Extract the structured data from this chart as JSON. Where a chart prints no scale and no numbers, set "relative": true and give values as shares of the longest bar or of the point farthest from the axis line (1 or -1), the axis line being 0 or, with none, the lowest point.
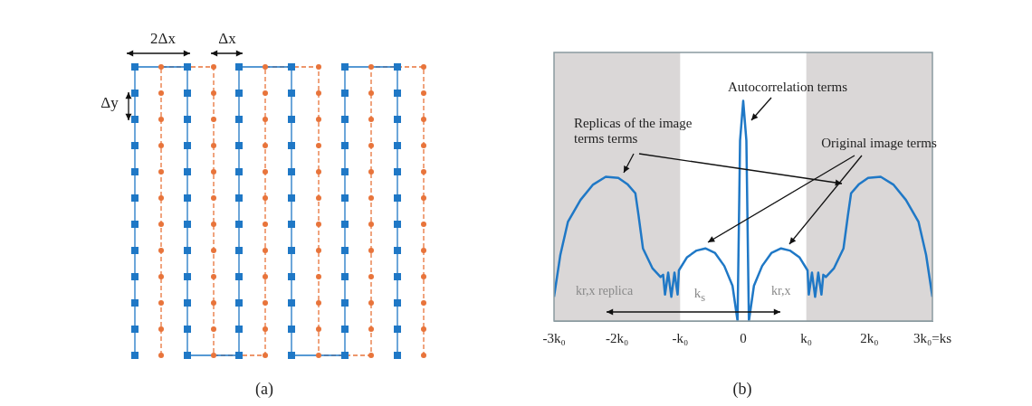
{
  "chart_data": [
    {
      "type": "other",
      "annotations": [
        "2Δx",
        "Δx",
        "Δy",
        "(a)"
      ]
    },
    {
      "type": "line",
      "relative": true,
      "color": "#1f78c6",
      "marker": "none",
      "legend": false,
      "x": [
        -3.0,
        -2.9,
        -2.78,
        -2.58,
        -2.38,
        -2.18,
        -1.98,
        -1.83,
        -1.71,
        -1.66,
        -1.59,
        -1.44,
        -1.31,
        -1.27,
        -1.24,
        -1.19,
        -1.14,
        -1.09,
        -1.04,
        -1.02,
        -0.89,
        -0.74,
        -0.6,
        -0.45,
        -0.3,
        -0.17,
        -0.09,
        -0.05,
        0,
        0.05,
        0.09,
        0.17,
        0.3,
        0.45,
        0.6,
        0.74,
        0.89,
        1.02,
        1.04,
        1.09,
        1.14,
        1.19,
        1.24,
        1.27,
        1.31,
        1.44,
        1.59,
        1.66,
        1.71,
        1.83,
        1.98,
        2.18,
        2.38,
        2.58,
        2.78,
        2.9,
        3.0
      ],
      "values": [
        0.11,
        0.3,
        0.45,
        0.55,
        0.62,
        0.655,
        0.65,
        0.62,
        0.58,
        0.48,
        0.33,
        0.24,
        0.2,
        0.21,
        0.12,
        0.22,
        0.11,
        0.22,
        0.12,
        0.23,
        0.29,
        0.32,
        0.33,
        0.31,
        0.25,
        0.16,
        0,
        0.82,
        1,
        0.82,
        0,
        0.16,
        0.25,
        0.31,
        0.33,
        0.32,
        0.29,
        0.23,
        0.12,
        0.22,
        0.11,
        0.22,
        0.12,
        0.21,
        0.2,
        0.24,
        0.33,
        0.48,
        0.58,
        0.62,
        0.65,
        0.655,
        0.62,
        0.55,
        0.45,
        0.3,
        0.11
      ],
      "xlim": [
        -3,
        3
      ],
      "xticks": [
        {
          "value": -3,
          "label": "-3k₀"
        },
        {
          "value": -2,
          "label": "-2k₀"
        },
        {
          "value": -1,
          "label": "-k₀"
        },
        0,
        {
          "value": 1,
          "label": "k₀"
        },
        {
          "value": 2,
          "label": "2k₀"
        },
        {
          "value": 3,
          "label": "3k₀=ks"
        }
      ],
      "bands": [
        {
          "axis": "x",
          "from": -3,
          "to": -1,
          "color": "#dad7d7"
        },
        {
          "axis": "x",
          "from": 1,
          "to": 3,
          "color": "#dad7d7"
        }
      ],
      "annotations": [
        "Autocorrelation terms",
        "Replicas of the image terms terms",
        "Original image terms",
        "kr,x replica",
        "k$_{s}$",
        "kr,x",
        "(b)"
      ]
    }
  ]
}
